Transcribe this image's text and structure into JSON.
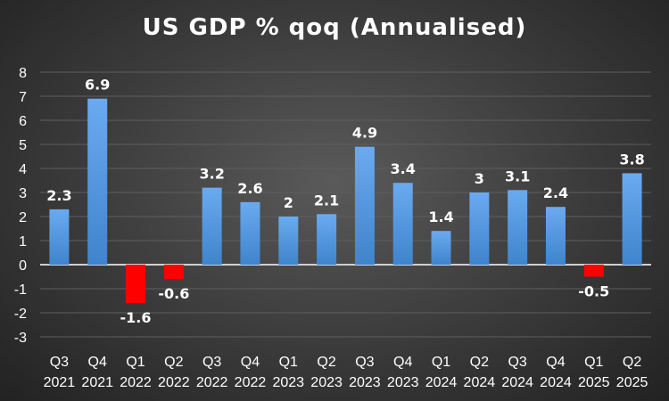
{
  "chart_data": {
    "type": "bar",
    "title": "US GDP % qoq (Annualised)",
    "categories": [
      [
        "Q3",
        "2021"
      ],
      [
        "Q4",
        "2021"
      ],
      [
        "Q1",
        "2022"
      ],
      [
        "Q2",
        "2022"
      ],
      [
        "Q3",
        "2022"
      ],
      [
        "Q4",
        "2022"
      ],
      [
        "Q1",
        "2023"
      ],
      [
        "Q2",
        "2023"
      ],
      [
        "Q3",
        "2023"
      ],
      [
        "Q4",
        "2023"
      ],
      [
        "Q1",
        "2024"
      ],
      [
        "Q2",
        "2024"
      ],
      [
        "Q3",
        "2024"
      ],
      [
        "Q4",
        "2024"
      ],
      [
        "Q1",
        "2025"
      ],
      [
        "Q2",
        "2025"
      ]
    ],
    "values": [
      2.3,
      6.9,
      -1.6,
      -0.6,
      3.2,
      2.6,
      2,
      2.1,
      4.9,
      3.4,
      1.4,
      3,
      3.1,
      2.4,
      -0.5,
      3.8
    ],
    "ylim": [
      -3,
      8
    ],
    "yticks": [
      8,
      7,
      6,
      5,
      4,
      3,
      2,
      1,
      0,
      -1,
      -2,
      -3
    ],
    "grid": true,
    "legend": "none",
    "colors": {
      "positive": "#4a8fd6",
      "negative": "#ff0000",
      "text": "#ffffff",
      "axis": "#e0e0e0"
    }
  }
}
